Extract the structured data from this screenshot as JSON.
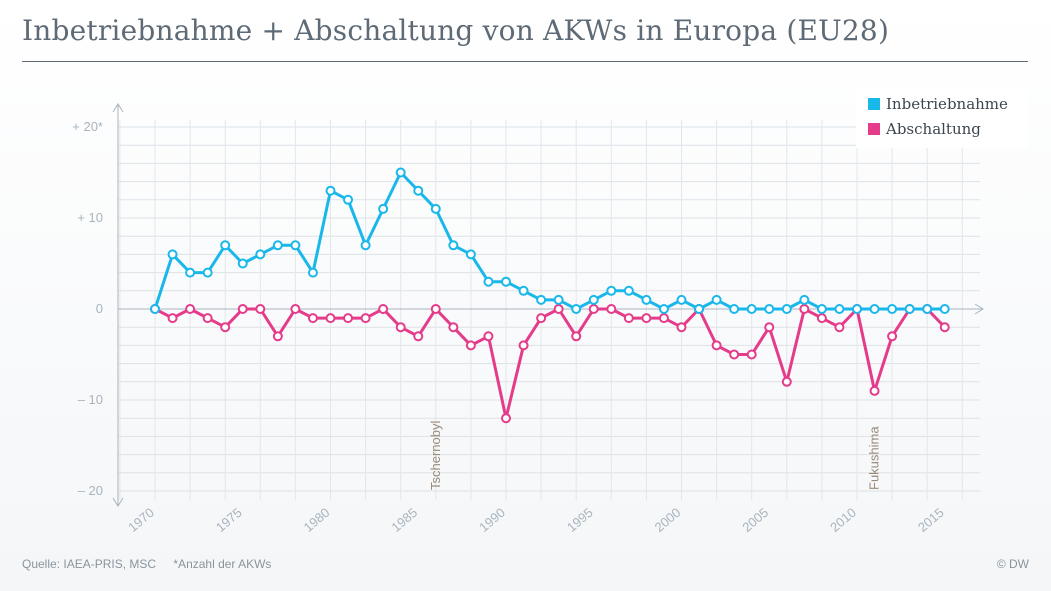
{
  "title": "Inbetriebnahme + Abschaltung von AKWs in Europa (EU28)",
  "legend": [
    {
      "label": "Inbetriebnahme",
      "color": "#1ab8ea"
    },
    {
      "label": "Abschaltung",
      "color": "#e53b8b"
    }
  ],
  "footer": {
    "source": "Quelle: IAEA-PRIS, MSC",
    "note": "*Anzahl der AKWs",
    "brand": "© DW"
  },
  "chart_data": {
    "type": "line",
    "title": "Inbetriebnahme + Abschaltung von AKWs in Europa (EU28)",
    "xlabel": "",
    "ylabel": "Anzahl der AKWs",
    "xlim": [
      1968,
      2017
    ],
    "ylim": [
      -20,
      20
    ],
    "y_ticks": [
      {
        "value": 20,
        "label": "+ 20*"
      },
      {
        "value": 10,
        "label": "+ 10"
      },
      {
        "value": 0,
        "label": "0"
      },
      {
        "value": -10,
        "label": "– 10"
      },
      {
        "value": -20,
        "label": "– 20"
      }
    ],
    "x_ticks": [
      "1970",
      "1975",
      "1980",
      "1985",
      "1990",
      "1995",
      "2000",
      "2005",
      "2010",
      "2015"
    ],
    "x": [
      1970,
      1971,
      1972,
      1973,
      1974,
      1975,
      1976,
      1977,
      1978,
      1979,
      1980,
      1981,
      1982,
      1983,
      1984,
      1985,
      1986,
      1987,
      1988,
      1989,
      1990,
      1991,
      1992,
      1993,
      1994,
      1995,
      1996,
      1997,
      1998,
      1999,
      2000,
      2001,
      2002,
      2003,
      2004,
      2005,
      2006,
      2007,
      2008,
      2009,
      2010,
      2011,
      2012,
      2013,
      2014,
      2015
    ],
    "series": [
      {
        "name": "Inbetriebnahme",
        "color": "#1ab8ea",
        "values": [
          0,
          6,
          4,
          4,
          7,
          5,
          6,
          7,
          7,
          4,
          13,
          12,
          7,
          11,
          15,
          13,
          11,
          7,
          6,
          3,
          3,
          2,
          1,
          1,
          0,
          1,
          2,
          2,
          1,
          0,
          1,
          0,
          1,
          0,
          0,
          0,
          0,
          1,
          0,
          0,
          0,
          0,
          0,
          0,
          0,
          0
        ]
      },
      {
        "name": "Abschaltung",
        "color": "#e53b8b",
        "values": [
          0,
          -1,
          0,
          -1,
          -2,
          0,
          0,
          -3,
          0,
          -1,
          -1,
          -1,
          -1,
          0,
          -2,
          -3,
          0,
          -2,
          -4,
          -3,
          -12,
          -4,
          -1,
          0,
          -3,
          0,
          0,
          -1,
          -1,
          -1,
          -2,
          0,
          -4,
          -5,
          -5,
          -2,
          -8,
          0,
          -1,
          -2,
          0,
          -9,
          -3,
          0,
          0,
          -2
        ]
      }
    ],
    "annotations": [
      {
        "x": 1986,
        "label": "Tschernobyl"
      },
      {
        "x": 2011,
        "label": "Fukushima"
      }
    ],
    "grid": true,
    "legend_position": "top-right"
  }
}
